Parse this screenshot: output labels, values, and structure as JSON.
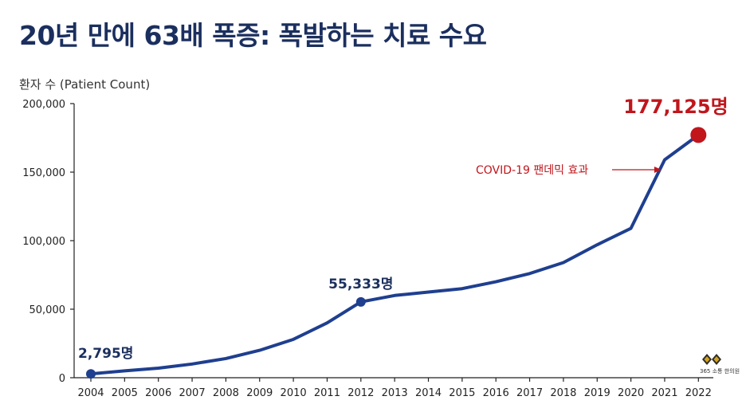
{
  "title": "20년 만에 63배 폭증: 폭발하는 치료 수요",
  "logo": {
    "text": "365 소통 한의원"
  },
  "colors": {
    "title": "#1b2f5e",
    "line": "#1f3f8f",
    "highlight": "#c0161c",
    "axis": "#222222"
  },
  "chart_data": {
    "type": "line",
    "title": "20년 만에 63배 폭증: 폭발하는 치료 수요",
    "xlabel": "",
    "ylabel": "환자 수 (Patient Count)",
    "ylim": [
      0,
      200000
    ],
    "yticks": [
      0,
      50000,
      100000,
      150000,
      200000
    ],
    "ytick_labels": [
      "0",
      "50,000",
      "100,000",
      "150,000",
      "200,000"
    ],
    "grid": false,
    "categories": [
      "2004",
      "2005",
      "2006",
      "2007",
      "2008",
      "2009",
      "2010",
      "2011",
      "2012",
      "2013",
      "2014",
      "2015",
      "2016",
      "2017",
      "2018",
      "2019",
      "2020",
      "2021",
      "2022"
    ],
    "series": [
      {
        "values": [
          2795,
          5000,
          7000,
          10000,
          14000,
          20000,
          28000,
          40000,
          55333,
          60000,
          62500,
          65000,
          70000,
          76000,
          84000,
          97000,
          109000,
          159000,
          177125
        ]
      }
    ],
    "point_labels": [
      {
        "index": 0,
        "text": "2,795명"
      },
      {
        "index": 8,
        "text": "55,333명"
      },
      {
        "index": 18,
        "text": "177,125명"
      }
    ],
    "annotations": [
      {
        "text": "COVID-19 팬데믹 효과",
        "target_index": 17
      }
    ]
  }
}
